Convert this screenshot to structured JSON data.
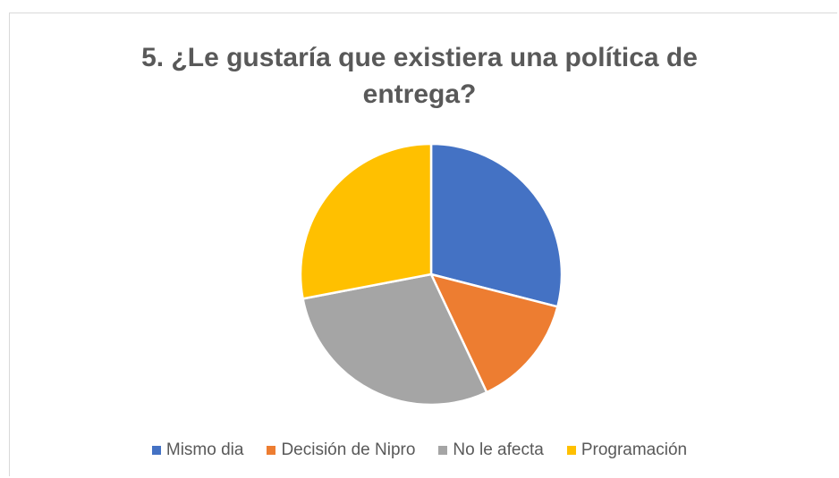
{
  "chart_data": {
    "type": "pie",
    "title_lines": [
      "5. ¿Le gustaría que existiera una política de",
      "entrega?"
    ],
    "categories": [
      "Mismo dia",
      "Decisión de Nipro",
      "No le afecta",
      "Programación"
    ],
    "values": [
      29,
      14,
      29,
      28
    ],
    "colors": [
      "#4472C4",
      "#ED7D31",
      "#A5A5A5",
      "#FFC000"
    ],
    "legend_position": "bottom",
    "start_angle_deg": 0,
    "direction": "clockwise"
  }
}
